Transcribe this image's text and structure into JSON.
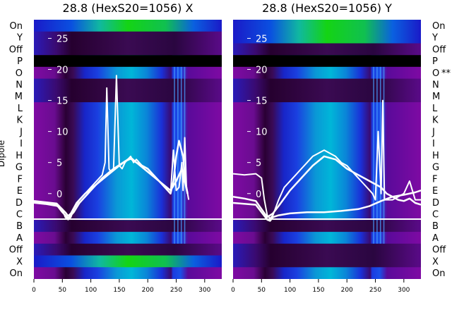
{
  "chart_data": {
    "type": "heatmap",
    "ylabel": "Dipole",
    "rows_top_to_bottom": [
      "On",
      "Y",
      "Off",
      "P",
      "O",
      "N",
      "M",
      "L",
      "K",
      "J",
      "I",
      "H",
      "G",
      "F",
      "E",
      "D",
      "C",
      "B",
      "A",
      "Off",
      "X",
      "On"
    ],
    "right_marker": "**",
    "right_marker_row": 4,
    "xlim": [
      0,
      330
    ],
    "xticks": [
      0,
      50,
      100,
      150,
      200,
      250,
      300
    ],
    "ylim_overlay": [
      -4,
      28
    ],
    "yticks_overlay": [
      0,
      5,
      10,
      15,
      20,
      25
    ],
    "colors": {
      "base": "#7e0aa3",
      "dark": "#24002e",
      "blue": "#1a2ce0",
      "cyan": "#00b8d6",
      "green": "#14d414",
      "white": "#ffffff"
    },
    "panels": [
      {
        "title": "28.8 (HexS20=1056) X",
        "lines": [
          {
            "x": [
              0,
              20,
              40,
              50,
              55,
              60,
              65,
              70,
              80,
              90,
              100,
              110,
              120,
              125,
              128,
              132,
              135,
              140,
              145,
              150,
              155,
              160,
              165,
              170,
              175,
              180,
              185,
              190,
              200,
              210,
              220,
              230,
              240,
              245,
              250,
              255,
              260,
              262,
              265,
              268,
              270,
              272
            ],
            "y": [
              -1.5,
              -1.7,
              -2,
              -2.5,
              -3.8,
              -4.2,
              -3.8,
              -2.5,
              -1,
              0,
              1,
              2,
              3,
              5,
              17,
              4,
              3.5,
              4,
              19,
              4.5,
              4,
              5,
              5.5,
              6,
              5,
              5.5,
              5,
              4.5,
              4,
              3,
              2,
              1,
              0,
              7,
              0.5,
              1,
              5,
              0.5,
              9,
              1,
              0,
              -1
            ]
          },
          {
            "x": [
              0,
              40,
              55,
              60,
              65,
              75,
              90,
              110,
              130,
              150,
              165,
              170,
              180,
              200,
              215,
              230,
              240,
              245,
              250,
              255,
              262,
              266,
              270
            ],
            "y": [
              -1.2,
              -1.6,
              -3,
              -3.6,
              -3.2,
              -1.5,
              0,
              1.5,
              3,
              4.5,
              5.5,
              5.8,
              5,
              4,
              2.5,
              1,
              0,
              2,
              6,
              8.5,
              6,
              2,
              0
            ]
          },
          {
            "x": [
              0,
              40,
              50,
              60,
              70,
              80,
              100,
              120,
              140,
              160,
              170,
              180,
              200,
              220,
              240,
              250,
              260,
              270
            ],
            "y": [
              -1.4,
              -1.8,
              -3,
              -4,
              -3,
              -1.5,
              0.5,
              2.5,
              4,
              5.2,
              5.6,
              5,
              3.5,
              2,
              0.5,
              2,
              4,
              0
            ]
          }
        ]
      },
      {
        "title": "28.8 (HexS20=1056) Y",
        "lines": [
          {
            "x": [
              0,
              20,
              40,
              50,
              55,
              60,
              65,
              70,
              80,
              90,
              100,
              110,
              120,
              130,
              140,
              150,
              160,
              170,
              180,
              190,
              200,
              210,
              220,
              230,
              240,
              245,
              250,
              255,
              260,
              263,
              266,
              270,
              280,
              290,
              300,
              310,
              320,
              330
            ],
            "y": [
              3.2,
              3,
              3.2,
              2.5,
              -1,
              -3.5,
              -4,
              -3.5,
              -1,
              1,
              2,
              3,
              4,
              5,
              6,
              6.5,
              7,
              6.5,
              6,
              5,
              4.5,
              3.5,
              2.5,
              1.5,
              0.5,
              0,
              -1,
              10,
              0,
              15,
              -1,
              -1,
              -1,
              -0.5,
              0,
              2,
              -1,
              -1
            ]
          },
          {
            "x": [
              0,
              20,
              40,
              50,
              60,
              70,
              80,
              100,
              120,
              140,
              160,
              180,
              200,
              220,
              240,
              250,
              260,
              270,
              280,
              290,
              300,
              310,
              320,
              330
            ],
            "y": [
              -0.5,
              -0.8,
              -1.2,
              -2.5,
              -3.8,
              -3.2,
              -2,
              0.5,
              2.5,
              4.5,
              6,
              5.5,
              4,
              3,
              2,
              1.5,
              1,
              0,
              -0.5,
              -1,
              -1.2,
              -0.8,
              -1.5,
              -1.8
            ]
          },
          {
            "x": [
              0,
              40,
              50,
              60,
              65,
              70,
              80,
              100,
              130,
              160,
              190,
              220,
              240,
              260,
              280,
              300,
              320,
              330
            ],
            "y": [
              -1.5,
              -1.8,
              -3,
              -4.2,
              -4.4,
              -3.8,
              -3.5,
              -3.2,
              -3,
              -3,
              -2.8,
              -2.5,
              -2,
              -1.2,
              -0.5,
              -0.2,
              0.2,
              0.5
            ]
          }
        ]
      }
    ]
  }
}
